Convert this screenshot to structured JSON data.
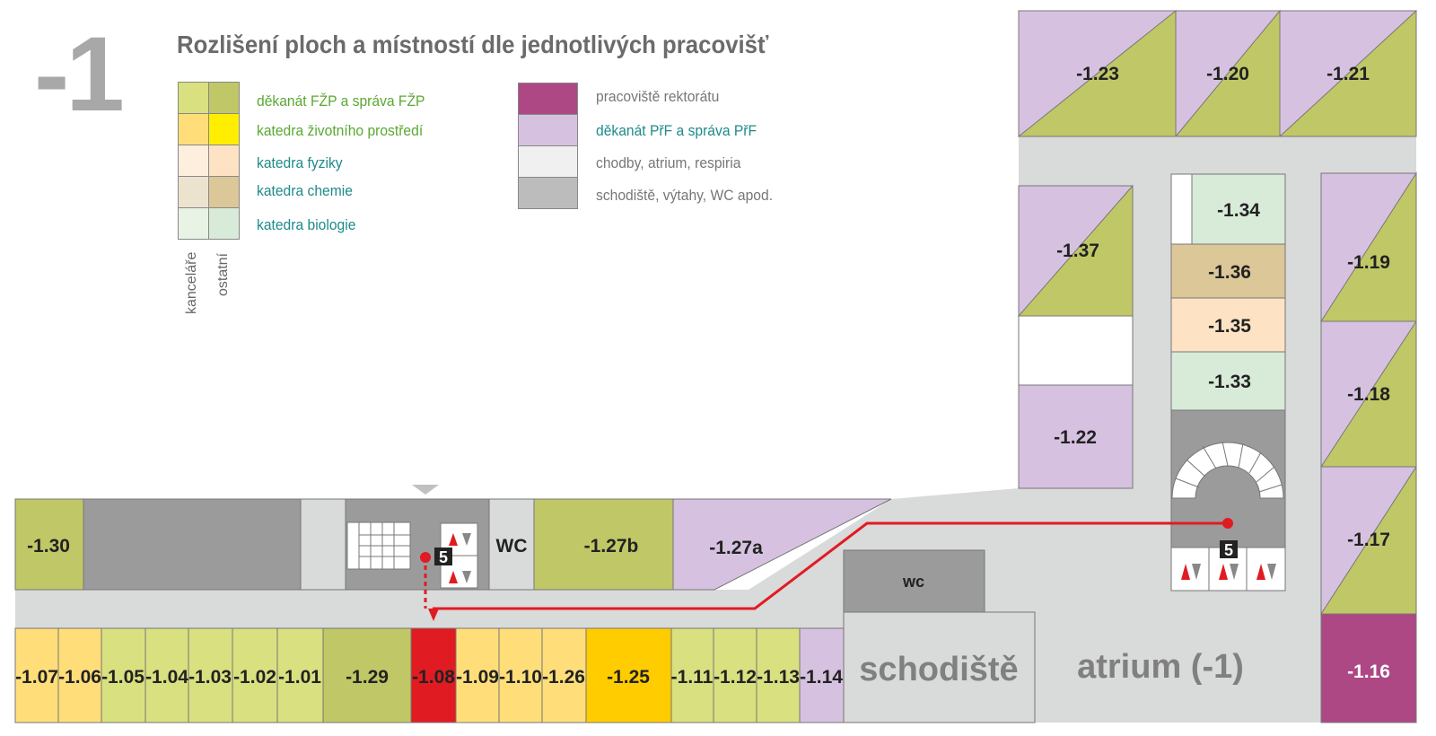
{
  "floor_number": "-1",
  "title": "Rozlišení ploch a místností dle jednotlivých pracovišť",
  "legend": {
    "left": [
      {
        "label": "děkanát FŽP a správa FŽP",
        "office": "#d9e07f",
        "other": "#c0c766",
        "text_color": "#5aa832"
      },
      {
        "label": "katedra životního prostředí",
        "office": "#ffde7a",
        "other": "#ffee00",
        "text_color": "#5aa832"
      },
      {
        "label": "katedra fyziky",
        "office": "#fdeedd",
        "other": "#fde3c4",
        "text_color": "#1f8a8a"
      },
      {
        "label": "katedra chemie",
        "office": "#ece3cf",
        "other": "#dcc798",
        "text_color": "#1f8a8a"
      },
      {
        "label": "katedra biologie",
        "office": "#e8f3e6",
        "other": "#d8ead8",
        "text_color": "#1f8a8a"
      }
    ],
    "right": [
      {
        "label": "pracoviště rektorátu",
        "color": "#ad4884",
        "text_color": "#777777"
      },
      {
        "label": "děkanát PřF a správa PřF",
        "color": "#d6c2e0",
        "text_color": "#1f8a8a"
      },
      {
        "label": "chodby, atrium, respiria",
        "color": "#f0f0f0",
        "text_color": "#777777"
      },
      {
        "label": "schodiště, výtahy, WC apod.",
        "color": "#bcbcbc",
        "text_color": "#777777"
      }
    ],
    "col_office": "kanceláře",
    "col_other": "ostatní"
  },
  "rooms": {
    "r123": "-1.23",
    "r120": "-1.20",
    "r121": "-1.21",
    "r137": "-1.37",
    "r134": "-1.34",
    "r136": "-1.36",
    "r135": "-1.35",
    "r133": "-1.33",
    "r122": "-1.22",
    "r119": "-1.19",
    "r118": "-1.18",
    "r117": "-1.17",
    "r116": "-1.16",
    "r130": "-1.30",
    "wc1": "WC",
    "r127b": "-1.27b",
    "r127a": "-1.27a",
    "wc2": "wc",
    "r107": "-1.07",
    "r106": "-1.06",
    "r105": "-1.05",
    "r104": "-1.04",
    "r103": "-1.03",
    "r102": "-1.02",
    "r101": "-1.01",
    "r129": "-1.29",
    "r108": "-1.08",
    "r109": "-1.09",
    "r110": "-1.10",
    "r126": "-1.26",
    "r125": "-1.25",
    "r111": "-1.11",
    "r112": "-1.12",
    "r113": "-1.13",
    "r114": "-1.14",
    "stairs": "schodiště",
    "atrium": "atrium (-1)",
    "elev_a": "5",
    "elev_b": "5"
  },
  "colors": {
    "route": "#e11b22",
    "corridor": "#d9dada",
    "service": "#9b9b9b",
    "highlight_room": "#e11b22"
  }
}
